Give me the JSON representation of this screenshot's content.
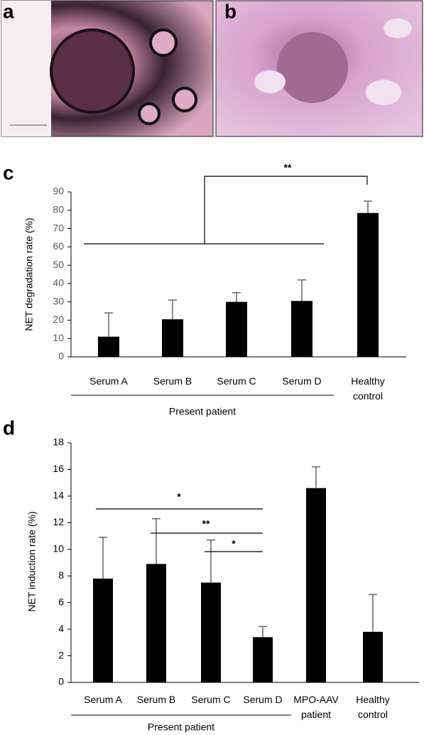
{
  "panel_labels": [
    "a",
    "b"
  ],
  "chart_data": [
    {
      "type": "bar",
      "panel_label": "c",
      "y_label": "NET degradation rate (%)",
      "categories": [
        "Serum A",
        "Serum B",
        "Serum C",
        "Serum D",
        "Healthy\ncontrol"
      ],
      "group_label": "Present patient",
      "series": [
        {
          "color": "#000000",
          "values": [
            11,
            20.5,
            30,
            30.5,
            78.5
          ],
          "errors": [
            13,
            10.5,
            5,
            11.5,
            6.5
          ]
        }
      ],
      "ylim": [
        0,
        90
      ],
      "yticks": [
        0,
        10,
        20,
        30,
        40,
        50,
        60,
        70,
        80,
        90
      ],
      "annotations": [
        {
          "text": "**"
        }
      ]
    },
    {
      "type": "bar",
      "panel_label": "d",
      "y_label": "NET induction rate (%)",
      "categories": [
        "Serum A",
        "Serum B",
        "Serum C",
        "Serum D",
        "MPO-AAV\npatient",
        "Healthy\ncontrol"
      ],
      "group_label": "Present patient",
      "series": [
        {
          "color": "#000000",
          "values": [
            7.8,
            8.9,
            7.5,
            3.4,
            14.6,
            3.8
          ],
          "errors": [
            3.1,
            3.4,
            3.2,
            0.8,
            1.6,
            2.8
          ]
        }
      ],
      "ylim": [
        0,
        18
      ],
      "yticks": [
        0,
        2,
        4,
        6,
        8,
        10,
        12,
        14,
        16,
        18
      ],
      "annotations": [
        {
          "text": "*"
        },
        {
          "text": "**"
        },
        {
          "text": "*"
        }
      ]
    }
  ]
}
